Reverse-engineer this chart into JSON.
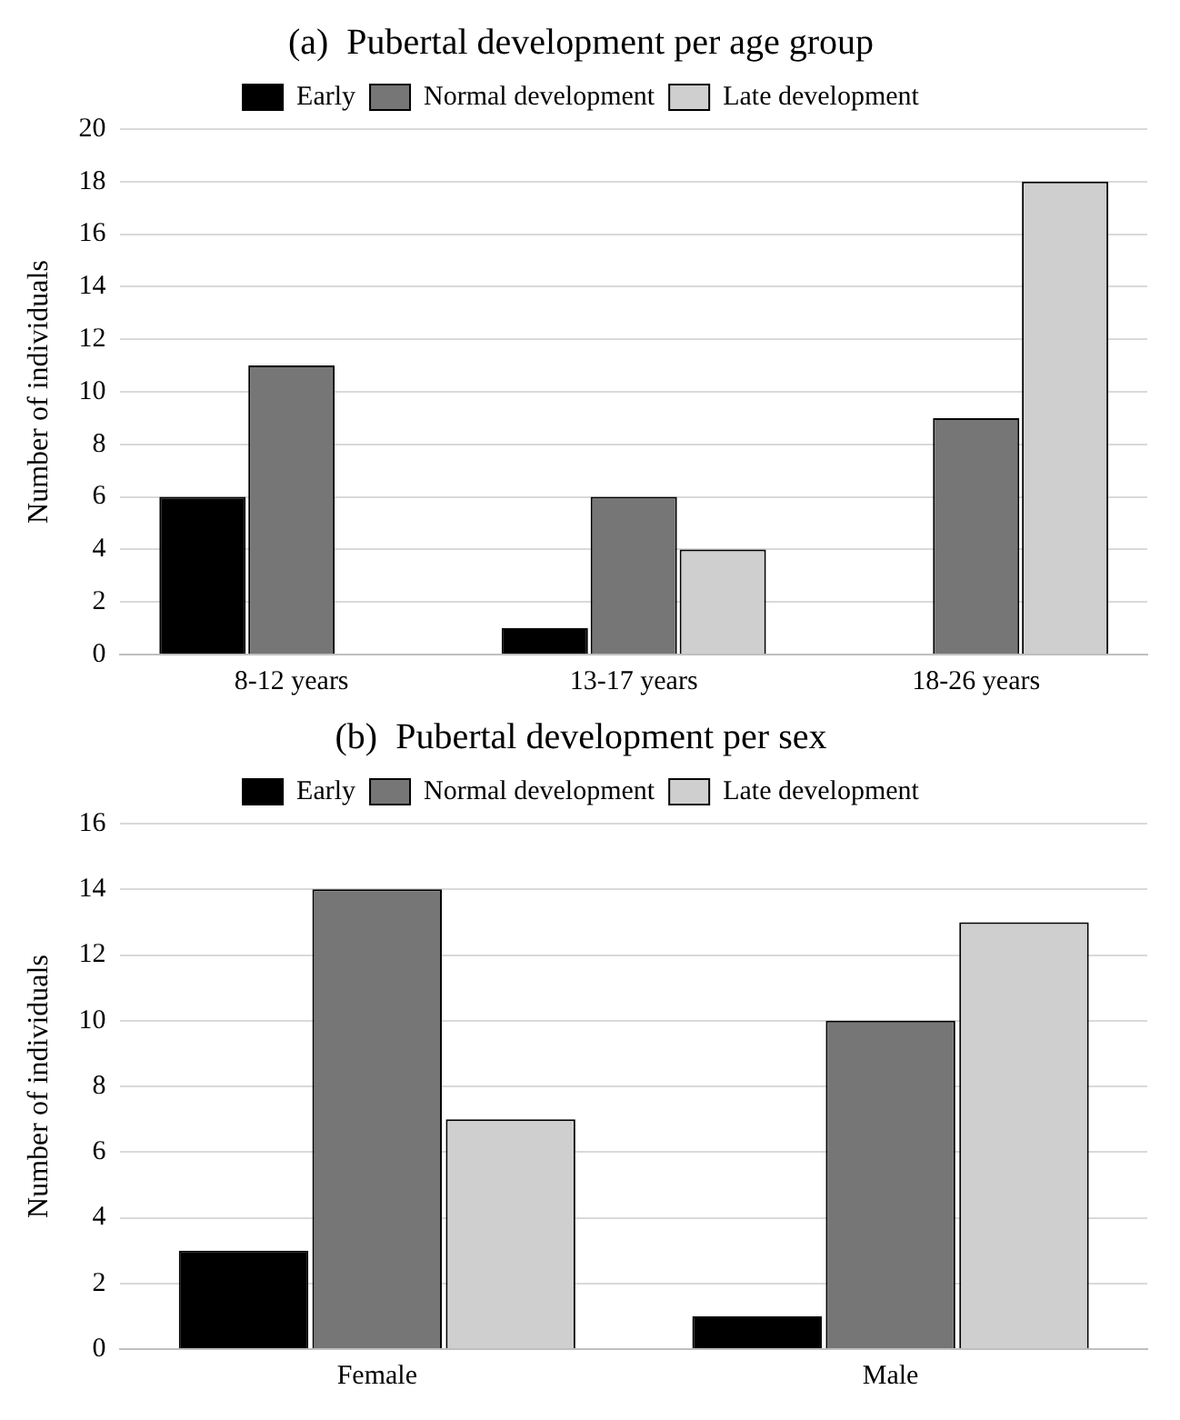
{
  "chart_data": [
    {
      "type": "bar",
      "title": "(a)  Pubertal development per age group",
      "ylabel": "Number of individuals",
      "categories": [
        "8-12 years",
        "13-17 years",
        "18-26 years"
      ],
      "series": [
        {
          "name": "Early",
          "color": "#000000",
          "values": [
            6,
            1,
            0
          ]
        },
        {
          "name": "Normal development",
          "color": "#767676",
          "values": [
            11,
            6,
            9
          ]
        },
        {
          "name": "Late development",
          "color": "#d0cfd0",
          "values": [
            0,
            4,
            18
          ]
        }
      ],
      "ylim": [
        0,
        20
      ],
      "yticks": [
        0,
        2,
        4,
        6,
        8,
        10,
        12,
        14,
        16,
        18,
        20
      ],
      "grid": "y",
      "legend": "top"
    },
    {
      "type": "bar",
      "title": "(b)  Pubertal development per sex",
      "ylabel": "Number of individuals",
      "categories": [
        "Female",
        "Male"
      ],
      "series": [
        {
          "name": "Early",
          "color": "#000000",
          "values": [
            3,
            1
          ]
        },
        {
          "name": "Normal development",
          "color": "#767676",
          "values": [
            14,
            10
          ]
        },
        {
          "name": "Late development",
          "color": "#d0cfd0",
          "values": [
            7,
            13
          ]
        }
      ],
      "ylim": [
        0,
        16
      ],
      "yticks": [
        0,
        2,
        4,
        6,
        8,
        10,
        12,
        14,
        16
      ],
      "grid": "y",
      "legend": "top"
    }
  ]
}
